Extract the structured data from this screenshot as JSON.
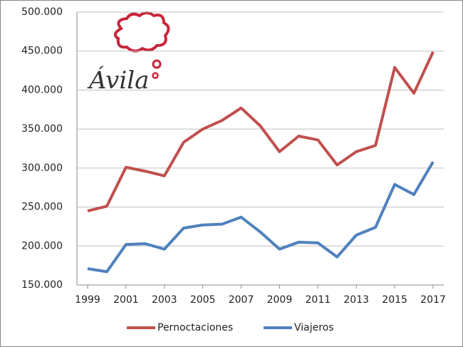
{
  "chart_data": {
    "type": "line",
    "logo": "Ávila",
    "x": [
      1999,
      2000,
      2001,
      2002,
      2003,
      2004,
      2005,
      2006,
      2007,
      2008,
      2009,
      2010,
      2011,
      2012,
      2013,
      2014,
      2015,
      2016,
      2017
    ],
    "xlim": [
      1999,
      2017
    ],
    "xticks": [
      1999,
      2001,
      2003,
      2005,
      2007,
      2009,
      2011,
      2013,
      2015,
      2017
    ],
    "ylim": [
      150000,
      500000
    ],
    "yticks": [
      {
        "value": 150000,
        "label": "150.000"
      },
      {
        "value": 200000,
        "label": "200.000"
      },
      {
        "value": 250000,
        "label": "250.000"
      },
      {
        "value": 300000,
        "label": "300.000"
      },
      {
        "value": 350000,
        "label": "350.000"
      },
      {
        "value": 400000,
        "label": "400.000"
      },
      {
        "value": 450000,
        "label": "450.000"
      },
      {
        "value": 500000,
        "label": "500.000"
      }
    ],
    "grid": true,
    "legend": "bottom",
    "series": [
      {
        "name": "Pernoctaciones",
        "color": "#c0504d",
        "values": [
          245000,
          251000,
          301000,
          296000,
          290000,
          333000,
          350000,
          361000,
          377000,
          354000,
          321000,
          341000,
          336000,
          304000,
          321000,
          329000,
          429000,
          396000,
          449000
        ]
      },
      {
        "name": "Viajeros",
        "color": "#4f81bd",
        "values": [
          171000,
          167000,
          202000,
          203000,
          196000,
          223000,
          227000,
          228000,
          237000,
          218000,
          196000,
          205000,
          204000,
          186000,
          214000,
          224000,
          279000,
          266000,
          308000
        ]
      }
    ]
  }
}
